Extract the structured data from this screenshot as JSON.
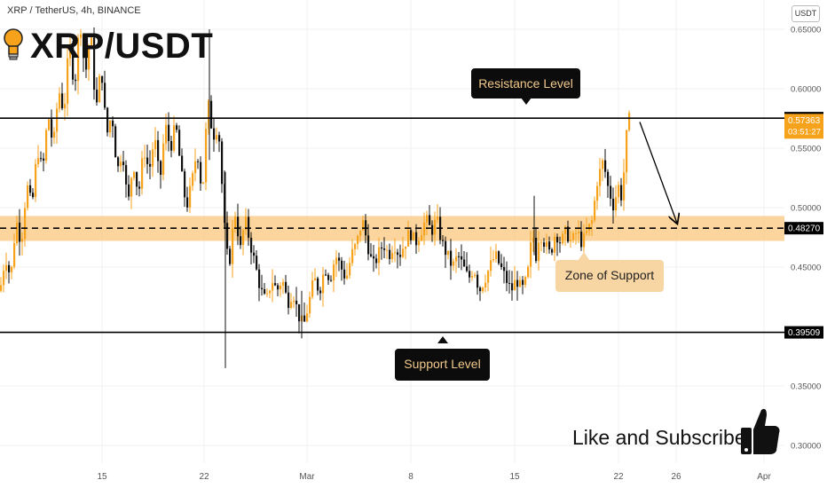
{
  "header": {
    "symbol_line": "XRP / TetherUS, 4h, BINANCE",
    "big_title": "XRP/USDT",
    "currency_badge": "USDT"
  },
  "annotations": {
    "resistance_label": "Resistance Level",
    "support_label": "Support Level",
    "zone_label": "Zone of Support",
    "cta_text": "Like and Subscribe"
  },
  "colors": {
    "up_candle": "#f7a21b",
    "down_candle": "#111111",
    "zone_fill": "#f9c77c",
    "resistance_line": "#000000",
    "price_tag": "#f7a21b"
  },
  "chart_data": {
    "type": "candlestick",
    "timeframe": "4h",
    "ylim": [
      0.28,
      0.68
    ],
    "y_ticks": [
      "0.65000",
      "0.60000",
      "0.55000",
      "0.50000",
      "0.45000",
      "0.35000",
      "0.30000"
    ],
    "x_ticks": [
      "15",
      "22",
      "Mar",
      "8",
      "15",
      "22",
      "26",
      "Apr"
    ],
    "levels": {
      "resistance": "0.57527",
      "current_price": "0.57363",
      "countdown": "03:51:27",
      "zone_mid": "0.48270",
      "support": "0.39509"
    },
    "zone_range": [
      0.472,
      0.493
    ],
    "projection": {
      "from": 0.572,
      "to": 0.487
    },
    "price_path": [
      [
        0,
        0.43
      ],
      [
        6,
        0.46
      ],
      [
        12,
        0.44
      ],
      [
        18,
        0.49
      ],
      [
        24,
        0.47
      ],
      [
        30,
        0.52
      ],
      [
        36,
        0.5
      ],
      [
        42,
        0.55
      ],
      [
        48,
        0.53
      ],
      [
        54,
        0.58
      ],
      [
        60,
        0.55
      ],
      [
        66,
        0.6
      ],
      [
        72,
        0.58
      ],
      [
        78,
        0.64
      ],
      [
        84,
        0.6
      ],
      [
        90,
        0.66
      ],
      [
        96,
        0.61
      ],
      [
        102,
        0.65
      ],
      [
        108,
        0.58
      ],
      [
        114,
        0.62
      ],
      [
        120,
        0.56
      ],
      [
        126,
        0.58
      ],
      [
        132,
        0.53
      ],
      [
        138,
        0.55
      ],
      [
        144,
        0.5
      ],
      [
        150,
        0.54
      ],
      [
        156,
        0.51
      ],
      [
        162,
        0.55
      ],
      [
        168,
        0.53
      ],
      [
        174,
        0.56
      ],
      [
        180,
        0.52
      ],
      [
        186,
        0.57
      ],
      [
        192,
        0.55
      ],
      [
        198,
        0.57
      ],
      [
        204,
        0.53
      ],
      [
        210,
        0.5
      ],
      [
        216,
        0.52
      ],
      [
        222,
        0.55
      ],
      [
        228,
        0.51
      ],
      [
        234,
        0.59
      ],
      [
        240,
        0.56
      ],
      [
        246,
        0.57
      ],
      [
        250,
        0.52
      ],
      [
        254,
        0.47
      ],
      [
        258,
        0.45
      ],
      [
        262,
        0.48
      ],
      [
        266,
        0.5
      ],
      [
        270,
        0.46
      ],
      [
        276,
        0.49
      ],
      [
        282,
        0.47
      ],
      [
        288,
        0.45
      ],
      [
        294,
        0.43
      ],
      [
        300,
        0.42
      ],
      [
        306,
        0.44
      ],
      [
        312,
        0.43
      ],
      [
        318,
        0.44
      ],
      [
        324,
        0.42
      ],
      [
        330,
        0.43
      ],
      [
        336,
        0.41
      ],
      [
        342,
        0.4
      ],
      [
        348,
        0.42
      ],
      [
        354,
        0.44
      ],
      [
        360,
        0.43
      ],
      [
        366,
        0.45
      ],
      [
        372,
        0.44
      ],
      [
        378,
        0.46
      ],
      [
        384,
        0.45
      ],
      [
        390,
        0.44
      ],
      [
        396,
        0.46
      ],
      [
        402,
        0.47
      ],
      [
        408,
        0.49
      ],
      [
        414,
        0.47
      ],
      [
        420,
        0.45
      ],
      [
        426,
        0.46
      ],
      [
        432,
        0.47
      ],
      [
        438,
        0.46
      ],
      [
        444,
        0.47
      ],
      [
        450,
        0.46
      ],
      [
        456,
        0.47
      ],
      [
        462,
        0.48
      ],
      [
        468,
        0.47
      ],
      [
        474,
        0.48
      ],
      [
        480,
        0.49
      ],
      [
        486,
        0.48
      ],
      [
        492,
        0.49
      ],
      [
        498,
        0.47
      ],
      [
        504,
        0.46
      ],
      [
        510,
        0.45
      ],
      [
        516,
        0.46
      ],
      [
        522,
        0.45
      ],
      [
        528,
        0.44
      ],
      [
        534,
        0.45
      ],
      [
        540,
        0.43
      ],
      [
        546,
        0.44
      ],
      [
        552,
        0.45
      ],
      [
        558,
        0.46
      ],
      [
        564,
        0.45
      ],
      [
        570,
        0.44
      ],
      [
        576,
        0.43
      ],
      [
        582,
        0.44
      ],
      [
        588,
        0.43
      ],
      [
        594,
        0.44
      ],
      [
        600,
        0.48
      ],
      [
        604,
        0.46
      ],
      [
        608,
        0.48
      ],
      [
        614,
        0.47
      ],
      [
        620,
        0.46
      ],
      [
        626,
        0.48
      ],
      [
        632,
        0.47
      ],
      [
        638,
        0.48
      ],
      [
        644,
        0.47
      ],
      [
        650,
        0.48
      ],
      [
        656,
        0.47
      ],
      [
        662,
        0.48
      ],
      [
        668,
        0.49
      ],
      [
        672,
        0.52
      ],
      [
        676,
        0.53
      ],
      [
        680,
        0.54
      ],
      [
        684,
        0.52
      ],
      [
        688,
        0.51
      ],
      [
        692,
        0.5
      ],
      [
        696,
        0.52
      ],
      [
        700,
        0.51
      ],
      [
        703,
        0.53
      ],
      [
        706,
        0.56
      ],
      [
        709,
        0.574
      ]
    ]
  }
}
